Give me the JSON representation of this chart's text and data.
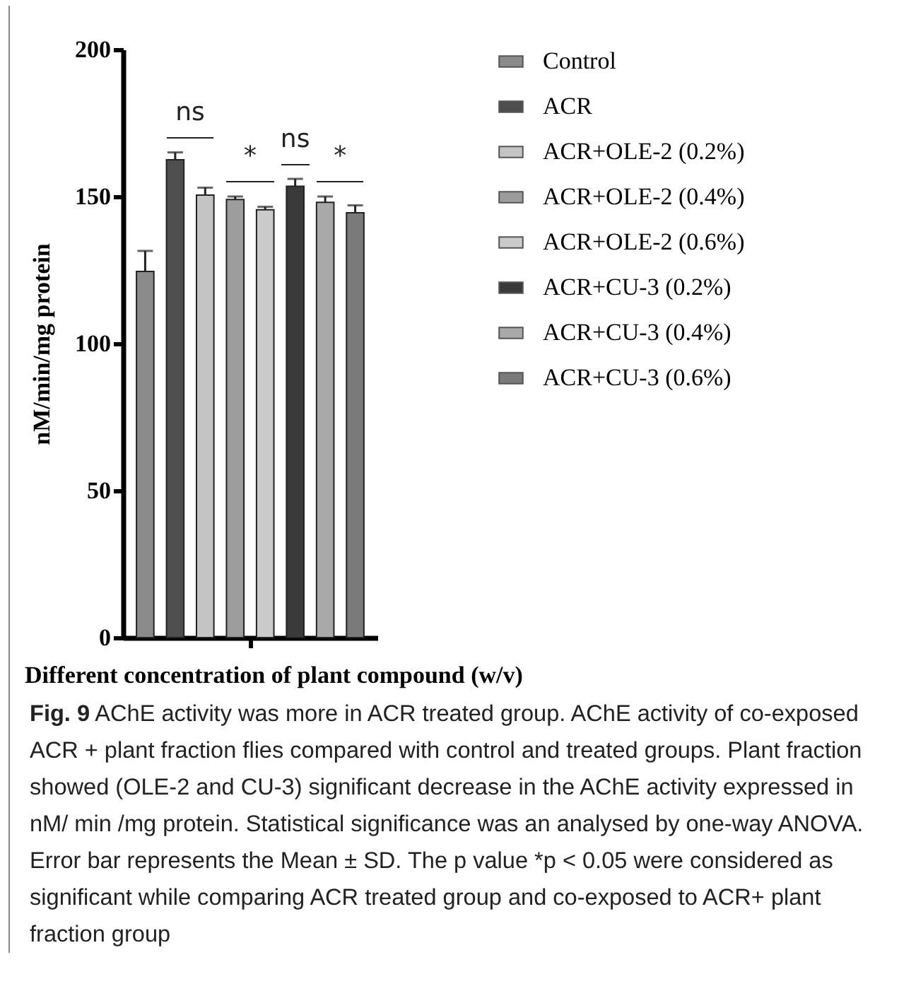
{
  "chart_data": {
    "type": "bar",
    "categories": [
      null
    ],
    "series": [
      {
        "name": "Control",
        "color": "#8a8a8a",
        "values": [
          124.5
        ],
        "errors": [
          7
        ]
      },
      {
        "name": "ACR",
        "color": "#4e4e4e",
        "values": [
          162.5
        ],
        "errors": [
          2.5
        ]
      },
      {
        "name": "ACR+OLE-2 (0.2%)",
        "color": "#c4c4c4",
        "values": [
          150.5
        ],
        "errors": [
          2.5
        ]
      },
      {
        "name": "ACR+OLE-2 (0.4%)",
        "color": "#9c9c9c",
        "values": [
          149
        ],
        "errors": [
          1
        ]
      },
      {
        "name": "ACR+OLE-2 (0.6%)",
        "color": "#cacaca",
        "values": [
          145.5
        ],
        "errors": [
          1
        ]
      },
      {
        "name": "ACR+CU-3 (0.2%)",
        "color": "#3a3a3a",
        "values": [
          153.5
        ],
        "errors": [
          2.5
        ]
      },
      {
        "name": "ACR+CU-3 (0.4%)",
        "color": "#a9a9a9",
        "values": [
          148
        ],
        "errors": [
          2
        ]
      },
      {
        "name": "ACR+CU-3 (0.6%)",
        "color": "#7a7a7a",
        "values": [
          144.5
        ],
        "errors": [
          2.5
        ]
      }
    ],
    "ylabel": "nM/min/mg protein",
    "xlabel": "Different concentration of plant compound (w/v)",
    "ylim": [
      0,
      200
    ],
    "yticks": [
      0,
      50,
      100,
      150,
      200
    ],
    "tick_labels": "y",
    "legend": "right",
    "annotations": [
      "ns",
      "*",
      "ns",
      "*",
      "Fig. 9  AChE activity was more in ACR treated group. AChE activity of co-exposed ACR + plant fraction flies compared  with control and treated groups. Plant fraction showed (OLE-2 and CU-3) significant decrease in the AChE activity  expressed in nM/ min /mg protein. Statistical significance was an analysed by one-way ANOVA. Error bar represents the  Mean ± SD. The p value *p < 0.05 were considered as significant while comparing ACR treated group and co-exposed to ACR+ plant fraction group"
    ]
  }
}
